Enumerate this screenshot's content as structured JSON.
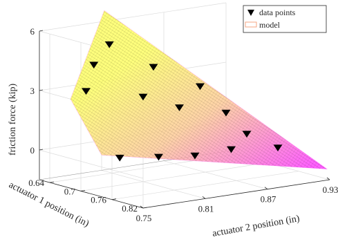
{
  "chart_data": {
    "type": "surface3d",
    "title": "",
    "xlabel": "actuator 2 position (in)",
    "ylabel": "actuator 1 position (in)",
    "zlabel": "friction force (kip)",
    "x_ticks": [
      "0.75",
      "0.81",
      "0.87",
      "0.93"
    ],
    "y_ticks": [
      "0.64",
      "0.7",
      "0.76",
      "0.82"
    ],
    "z_ticks": [
      "0",
      "3",
      "6"
    ],
    "xlim": [
      0.75,
      0.93
    ],
    "ylim": [
      0.62,
      0.82
    ],
    "zlim": [
      -1.5,
      6
    ],
    "grid": true,
    "legend": {
      "placement": "top-right",
      "entries": [
        {
          "label": "data points",
          "marker": "down-triangle",
          "color": "#000000"
        },
        {
          "label": "model",
          "marker": "surface",
          "color": "#f4a582"
        }
      ]
    },
    "series": [
      {
        "name": "data points",
        "marker": "down-triangle",
        "points": [
          {
            "x": 0.8,
            "y": 0.655,
            "z": 5.2
          },
          {
            "x": 0.78,
            "y": 0.665,
            "z": 4.4
          },
          {
            "x": 0.765,
            "y": 0.68,
            "z": 3.3
          },
          {
            "x": 0.83,
            "y": 0.68,
            "z": 4.0
          },
          {
            "x": 0.81,
            "y": 0.7,
            "z": 2.8
          },
          {
            "x": 0.835,
            "y": 0.72,
            "z": 2.2
          },
          {
            "x": 0.86,
            "y": 0.71,
            "z": 3.0
          },
          {
            "x": 0.87,
            "y": 0.74,
            "z": 1.8
          },
          {
            "x": 0.88,
            "y": 0.76,
            "z": 0.8
          },
          {
            "x": 0.895,
            "y": 0.79,
            "z": 0.2
          },
          {
            "x": 0.86,
            "y": 0.77,
            "z": 0.25
          },
          {
            "x": 0.83,
            "y": 0.76,
            "z": 0.1
          },
          {
            "x": 0.8,
            "y": 0.75,
            "z": 0.2
          },
          {
            "x": 0.765,
            "y": 0.745,
            "z": 0.4
          }
        ]
      },
      {
        "name": "model",
        "type": "surface",
        "colormap": "spring",
        "corners": [
          {
            "x": 0.81,
            "y": 0.625,
            "z": 6.6
          },
          {
            "x": 0.75,
            "y": 0.68,
            "z": 3.0
          },
          {
            "x": 0.75,
            "y": 0.74,
            "z": 0.6
          },
          {
            "x": 0.93,
            "y": 0.815,
            "z": -1.0
          }
        ]
      }
    ]
  }
}
